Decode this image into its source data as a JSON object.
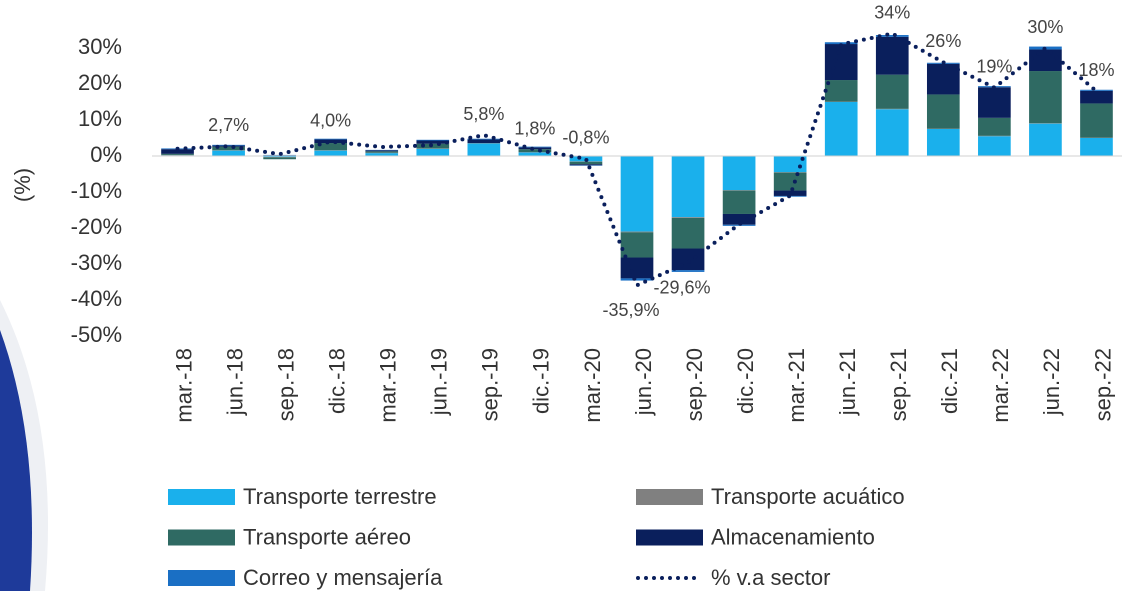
{
  "chart_data": {
    "type": "bar",
    "stacked": true,
    "y_label": "(%)",
    "categories": [
      "mar.-18",
      "jun.-18",
      "sep.-18",
      "dic.-18",
      "mar.-19",
      "jun.-19",
      "sep.-19",
      "dic.-19",
      "mar.-20",
      "jun.-20",
      "sep.-20",
      "dic.-20",
      "mar.-21",
      "jun.-21",
      "sep.-21",
      "dic.-21",
      "mar.-22",
      "jun.-22",
      "sep.-22"
    ],
    "series": [
      {
        "name": "Transporte terrestre",
        "color": "#1ab0ec",
        "values": [
          0.2,
          1.5,
          -0.3,
          1.5,
          0.8,
          2,
          3.5,
          1,
          -1.5,
          -21,
          -17,
          -9.5,
          -4.5,
          15,
          13,
          7.5,
          5.5,
          9,
          5
        ]
      },
      {
        "name": "Transporte acuático",
        "color": "#808080",
        "values": [
          0.1,
          0.1,
          -0.1,
          0.1,
          0.1,
          0.1,
          0.1,
          0.1,
          -0.1,
          -0.2,
          -0.2,
          -0.1,
          -0.1,
          0.1,
          0.1,
          0.1,
          0.1,
          0.1,
          0.1
        ]
      },
      {
        "name": "Transporte aéreo",
        "color": "#2f6a63",
        "values": [
          0.3,
          1,
          -0.5,
          2,
          0.4,
          1.3,
          0,
          0.8,
          -0.7,
          -7,
          -8.5,
          -6.5,
          -5,
          6,
          9.5,
          9.5,
          5,
          14.5,
          9.5
        ]
      },
      {
        "name": "Almacenamiento",
        "color": "#0a1f5c",
        "values": [
          1.3,
          0.3,
          0.2,
          1,
          0.3,
          0.9,
          1,
          0.5,
          -0.3,
          -5.8,
          -6,
          -3,
          -1.5,
          10,
          10.5,
          8.5,
          8.5,
          6,
          3.5
        ]
      },
      {
        "name": "Correo y mensajería",
        "color": "#1a6fc4",
        "values": [
          0.2,
          0.2,
          0.1,
          0.2,
          0.1,
          0.2,
          0.2,
          0.2,
          -0.1,
          -0.6,
          -0.5,
          -0.3,
          -0.2,
          0.5,
          0.5,
          0.3,
          0.3,
          0.8,
          0.3
        ]
      },
      {
        "name": "% v.a sector",
        "type": "line",
        "color": "#0a1f5c",
        "values": [
          2,
          2.7,
          0.5,
          4,
          2.5,
          3,
          5.8,
          1.8,
          -0.8,
          -35.9,
          -29.6,
          -19,
          -11,
          31,
          34,
          26,
          19,
          30,
          18
        ],
        "value_labels": [
          null,
          "2,7%",
          null,
          "4,0%",
          null,
          null,
          "5,8%",
          "1,8%",
          "-0,8%",
          "-35,9%",
          "-29,6%",
          null,
          null,
          null,
          "34%",
          "26%",
          "19%",
          "30%",
          "18%"
        ]
      }
    ],
    "ylim": [
      -50,
      40
    ],
    "yticks": [
      {
        "value": -50,
        "label": "-50%"
      },
      {
        "value": -40,
        "label": "-40%"
      },
      {
        "value": -30,
        "label": "-30%"
      },
      {
        "value": -20,
        "label": "-20%"
      },
      {
        "value": -10,
        "label": "-10%"
      },
      {
        "value": 0,
        "label": "0%"
      },
      {
        "value": 10,
        "label": "10%"
      },
      {
        "value": 20,
        "label": "20%"
      },
      {
        "value": 30,
        "label": "30%"
      }
    ]
  }
}
